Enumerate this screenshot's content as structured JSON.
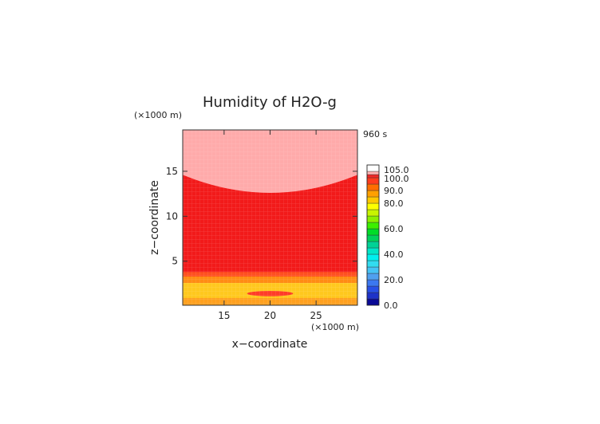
{
  "chart_data": {
    "type": "heatmap",
    "title": "Humidity of H2O-g",
    "time_label": "960 s",
    "xlabel": "x−coordinate",
    "ylabel": "z−coordinate",
    "x_unit": "(×1000 m)",
    "y_unit": "(×1000 m)",
    "xlim": [
      10.5,
      29.5
    ],
    "ylim": [
      0.1,
      19.6
    ],
    "x_ticks": [
      15,
      20,
      25
    ],
    "y_ticks": [
      5,
      10,
      15
    ],
    "colorbar": {
      "range": [
        0,
        105
      ],
      "tick_values": [
        0,
        20,
        40,
        60,
        80,
        90,
        100,
        105
      ],
      "tick_labels": [
        "0.0",
        "20.0",
        "40.0",
        "60.0",
        "80.0",
        "90.0",
        "100.0",
        "105.0"
      ],
      "levels": [
        {
          "lo": 0,
          "hi": 5,
          "color": "#0a0a96"
        },
        {
          "lo": 5,
          "hi": 10,
          "color": "#1e32c8"
        },
        {
          "lo": 10,
          "hi": 15,
          "color": "#2850e6"
        },
        {
          "lo": 15,
          "hi": 20,
          "color": "#3c78f0"
        },
        {
          "lo": 20,
          "hi": 25,
          "color": "#50a0f0"
        },
        {
          "lo": 25,
          "hi": 30,
          "color": "#46c3f5"
        },
        {
          "lo": 30,
          "hi": 35,
          "color": "#32dcf0"
        },
        {
          "lo": 35,
          "hi": 40,
          "color": "#00f0f0"
        },
        {
          "lo": 40,
          "hi": 45,
          "color": "#00e6c8"
        },
        {
          "lo": 45,
          "hi": 50,
          "color": "#00d296"
        },
        {
          "lo": 50,
          "hi": 55,
          "color": "#00d25a"
        },
        {
          "lo": 55,
          "hi": 60,
          "color": "#00dc28"
        },
        {
          "lo": 60,
          "hi": 65,
          "color": "#3cf000"
        },
        {
          "lo": 65,
          "hi": 70,
          "color": "#8cf000"
        },
        {
          "lo": 70,
          "hi": 75,
          "color": "#c8f500"
        },
        {
          "lo": 75,
          "hi": 80,
          "color": "#ffff00"
        },
        {
          "lo": 80,
          "hi": 85,
          "color": "#ffc800"
        },
        {
          "lo": 85,
          "hi": 90,
          "color": "#ffa000"
        },
        {
          "lo": 90,
          "hi": 95,
          "color": "#ff6e00"
        },
        {
          "lo": 95,
          "hi": 100,
          "color": "#ff3c1e"
        },
        {
          "lo": 100,
          "hi": 102.5,
          "color": "#f02828"
        },
        {
          "lo": 102.5,
          "hi": 105,
          "color": "#ffb4b4"
        },
        {
          "lo": 105,
          "hi": 110,
          "color": "#ffffff"
        }
      ]
    },
    "regions": [
      {
        "name": "saturated-upper",
        "color": "#ffaaaa",
        "z_edge": 14.6,
        "z_edge_center": 12.6
      },
      {
        "name": "red-main",
        "color": "#f21a1a"
      },
      {
        "name": "band-orange-red",
        "color": "#ff5020",
        "z_range": [
          3.3,
          3.8
        ]
      },
      {
        "name": "band-orange",
        "color": "#ff8c14",
        "z_range": [
          2.6,
          3.3
        ]
      },
      {
        "name": "band-yellow",
        "color": "#ffc81e",
        "z_range": [
          0.9,
          2.6
        ]
      },
      {
        "name": "band-bottom",
        "color": "#ffa01e",
        "z_range": [
          0.1,
          0.9
        ]
      },
      {
        "name": "red-blob",
        "color": "#ff3c28",
        "center": [
          20,
          1.4
        ],
        "radius": [
          2.5,
          0.3
        ]
      }
    ]
  }
}
